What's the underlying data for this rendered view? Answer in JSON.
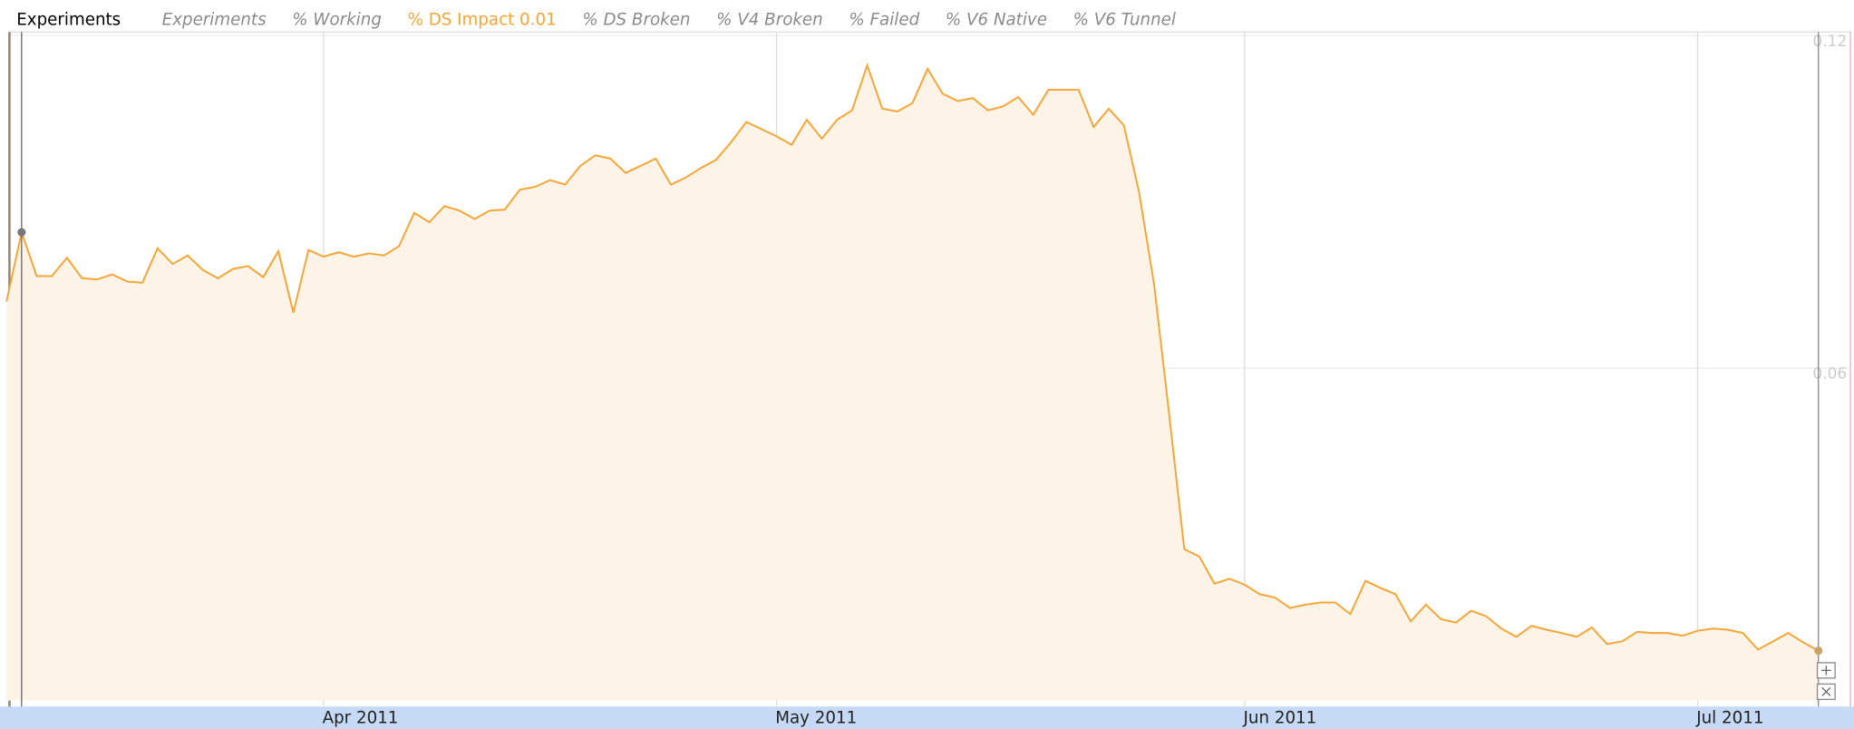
{
  "chart_data": {
    "type": "area",
    "title": "Experiments",
    "series": [
      {
        "name": "Experiments",
        "color": "#8a8a8a",
        "visible": false
      },
      {
        "name": "% Working",
        "color": "#8a8a8a",
        "visible": false
      },
      {
        "name": "% DS Impact 0.01",
        "color": "#f6a534",
        "fill": "#fdf3e6",
        "visible": true,
        "values": [
          0.072,
          0.0845,
          0.0766,
          0.0766,
          0.0799,
          0.0762,
          0.076,
          0.0769,
          0.0756,
          0.0754,
          0.0816,
          0.0788,
          0.0803,
          0.0777,
          0.0762,
          0.0779,
          0.0784,
          0.0764,
          0.0811,
          0.07,
          0.0813,
          0.0801,
          0.0809,
          0.0801,
          0.0807,
          0.0803,
          0.082,
          0.088,
          0.0863,
          0.0892,
          0.0884,
          0.0869,
          0.0884,
          0.0886,
          0.0922,
          0.0927,
          0.0939,
          0.0931,
          0.0965,
          0.0984,
          0.0978,
          0.0952,
          0.0965,
          0.0978,
          0.0931,
          0.0944,
          0.0961,
          0.0976,
          0.1008,
          0.1044,
          0.1031,
          0.1018,
          0.1003,
          0.1048,
          0.1014,
          0.1048,
          0.1065,
          0.1146,
          0.1068,
          0.1063,
          0.1078,
          0.114,
          0.1095,
          0.1082,
          0.1087,
          0.1065,
          0.1072,
          0.1089,
          0.1057,
          0.1102,
          0.1102,
          0.1102,
          0.1035,
          0.1068,
          0.1038,
          0.0918,
          0.0752,
          0.0517,
          0.0273,
          0.026,
          0.0211,
          0.022,
          0.0209,
          0.0192,
          0.0186,
          0.0167,
          0.0173,
          0.0177,
          0.0177,
          0.0156,
          0.0216,
          0.0203,
          0.0192,
          0.0143,
          0.0173,
          0.0147,
          0.0141,
          0.0162,
          0.0152,
          0.013,
          0.0115,
          0.0135,
          0.0128,
          0.0122,
          0.0115,
          0.0132,
          0.0102,
          0.0107,
          0.0124,
          0.0122,
          0.0122,
          0.0117,
          0.0126,
          0.013,
          0.0128,
          0.0122,
          0.0092,
          0.0107,
          0.0122,
          0.0105,
          0.009
        ]
      },
      {
        "name": "% DS Broken",
        "color": "#8a8a8a",
        "visible": false
      },
      {
        "name": "% V4 Broken",
        "color": "#8a8a8a",
        "visible": false
      },
      {
        "name": "% Failed",
        "color": "#8a8a8a",
        "visible": false
      },
      {
        "name": "% V6 Native",
        "color": "#8a8a8a",
        "visible": false
      },
      {
        "name": "% V6 Tunnel",
        "color": "#8a8a8a",
        "visible": false
      }
    ],
    "categories": [
      null,
      null,
      null,
      null,
      null,
      null,
      null,
      null,
      null,
      null,
      null,
      null,
      null,
      null,
      null,
      null,
      null,
      null,
      null,
      null,
      null,
      "Apr 2011",
      null,
      null,
      null,
      null,
      null,
      null,
      null,
      null,
      null,
      null,
      null,
      null,
      null,
      null,
      null,
      null,
      null,
      null,
      null,
      null,
      null,
      null,
      null,
      null,
      null,
      null,
      null,
      null,
      null,
      "May 2011",
      null,
      null,
      null,
      null,
      null,
      null,
      null,
      null,
      null,
      null,
      null,
      null,
      null,
      null,
      null,
      null,
      null,
      null,
      null,
      null,
      null,
      null,
      null,
      null,
      null,
      null,
      null,
      null,
      null,
      null,
      "Jun 2011",
      null,
      null,
      null,
      null,
      null,
      null,
      null,
      null,
      null,
      null,
      null,
      null,
      null,
      null,
      null,
      null,
      null,
      null,
      null,
      null,
      null,
      null,
      null,
      null,
      null,
      null,
      null,
      null,
      null,
      "Jul 2011",
      null,
      null,
      null,
      null,
      null,
      null,
      null,
      null
    ],
    "ylim": [
      0,
      0.12
    ],
    "yticks": [
      0.06,
      0.12
    ],
    "grid": true
  }
}
